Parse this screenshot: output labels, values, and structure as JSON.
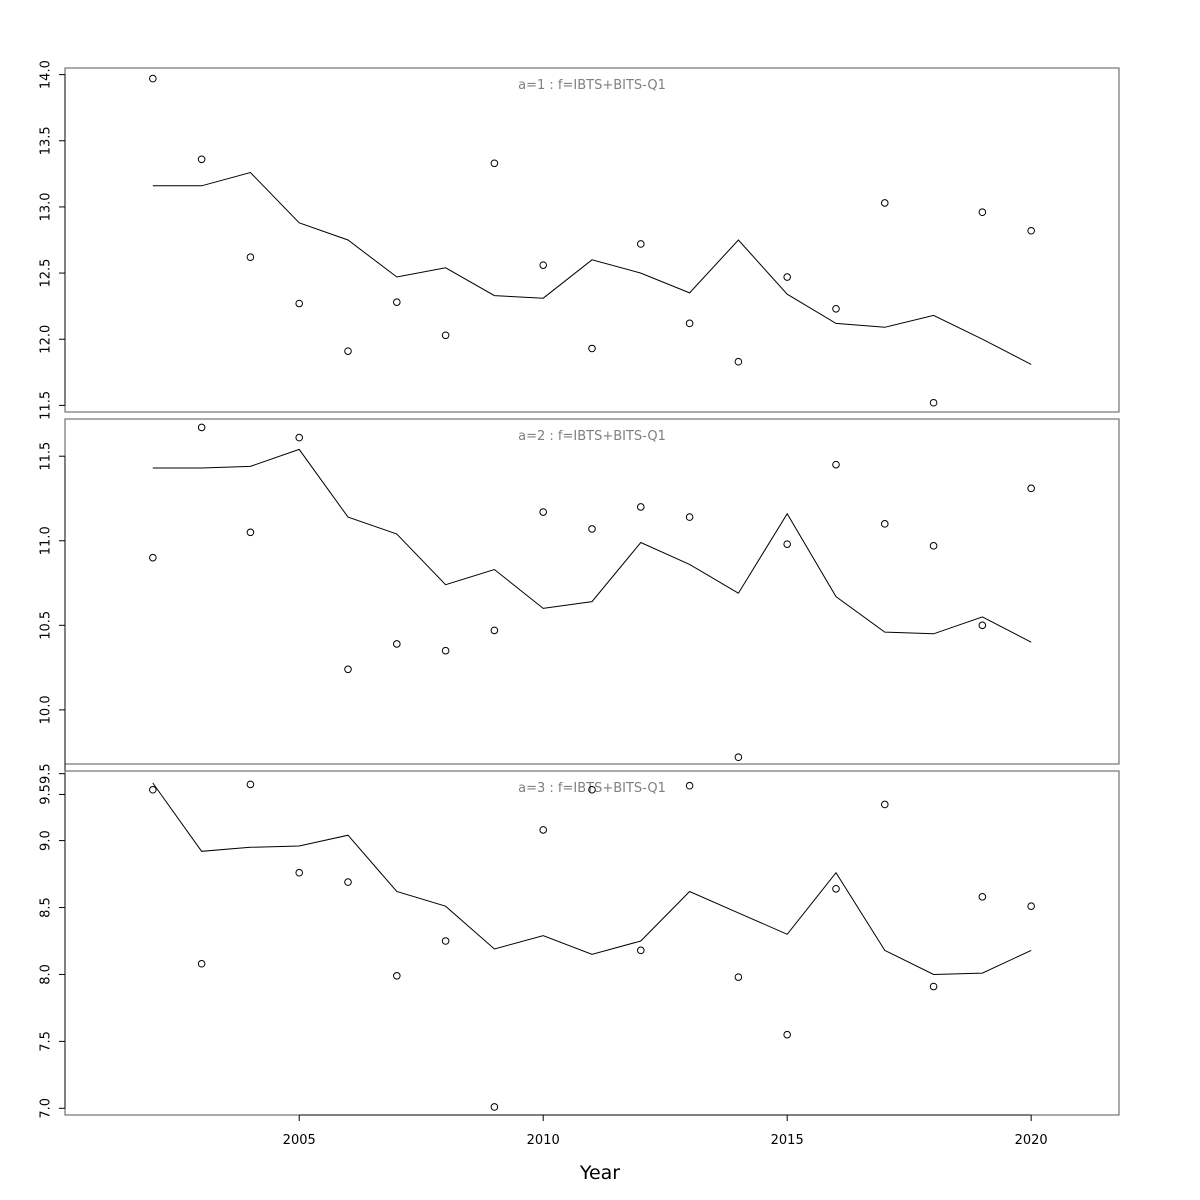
{
  "chart_data": {
    "type": "line",
    "xlabel": "Year",
    "xlim": [
      2000.2,
      2021.8
    ],
    "x_ticks": [
      2005,
      2010,
      2015,
      2020
    ],
    "x_tick_labels": [
      "2005",
      "2010",
      "2015",
      "2020"
    ],
    "colors": {
      "line": "#000000",
      "points": "#000000",
      "title": "#7f7f7f",
      "frame": "#555555"
    },
    "panels": [
      {
        "title": "a=1 : f=IBTS+BITS-Q1",
        "ylim": [
          11.45,
          14.05
        ],
        "y_ticks": [
          11.5,
          12.0,
          12.5,
          13.0,
          13.5,
          14.0
        ],
        "y_tick_labels": [
          "11.5",
          "12.0",
          "12.5",
          "13.0",
          "13.5",
          "14.0"
        ],
        "series": [
          {
            "type": "line",
            "x": [
              2002,
              2003,
              2004,
              2005,
              2006,
              2007,
              2008,
              2009,
              2010,
              2011,
              2012,
              2013,
              2014,
              2015,
              2016,
              2017,
              2018,
              2019,
              2020
            ],
            "y": [
              13.16,
              13.16,
              13.26,
              12.88,
              12.75,
              12.47,
              12.54,
              12.33,
              12.31,
              12.6,
              12.5,
              12.35,
              12.75,
              12.34,
              12.12,
              12.09,
              12.18,
              12.0,
              11.81
            ]
          },
          {
            "type": "scatter",
            "x": [
              2002,
              2003,
              2004,
              2005,
              2006,
              2007,
              2008,
              2009,
              2010,
              2011,
              2012,
              2013,
              2014,
              2015,
              2016,
              2017,
              2018,
              2019,
              2020
            ],
            "y": [
              13.97,
              13.36,
              12.62,
              12.27,
              11.91,
              12.28,
              12.03,
              13.33,
              12.56,
              11.93,
              12.72,
              12.12,
              11.83,
              12.47,
              12.23,
              13.03,
              11.52,
              12.96,
              12.82
            ]
          }
        ]
      },
      {
        "title": "a=2 : f=IBTS+BITS-Q1",
        "ylim": [
          9.68,
          11.72
        ],
        "y_ticks": [
          9.5,
          10.0,
          10.5,
          11.0,
          11.5
        ],
        "y_tick_labels": [
          "9.5",
          "10.0",
          "10.5",
          "11.0",
          "11.5"
        ],
        "series": [
          {
            "type": "line",
            "x": [
              2002,
              2003,
              2004,
              2005,
              2006,
              2007,
              2008,
              2009,
              2010,
              2011,
              2012,
              2013,
              2014,
              2015,
              2016,
              2017,
              2018,
              2019,
              2020
            ],
            "y": [
              11.43,
              11.43,
              11.44,
              11.54,
              11.14,
              11.04,
              10.74,
              10.83,
              10.6,
              10.64,
              10.99,
              10.86,
              10.69,
              11.16,
              10.67,
              10.46,
              10.45,
              10.55,
              10.4
            ]
          },
          {
            "type": "scatter",
            "x": [
              2002,
              2003,
              2004,
              2005,
              2006,
              2007,
              2008,
              2009,
              2010,
              2011,
              2012,
              2013,
              2014,
              2015,
              2016,
              2017,
              2018,
              2019,
              2020
            ],
            "y": [
              10.9,
              11.67,
              11.05,
              11.61,
              10.24,
              10.39,
              10.35,
              10.47,
              11.17,
              11.07,
              11.2,
              11.14,
              9.72,
              10.98,
              11.45,
              11.1,
              10.97,
              10.5,
              11.31
            ]
          }
        ]
      },
      {
        "title": "a=3 : f=IBTS+BITS-Q1",
        "ylim": [
          6.95,
          9.52
        ],
        "y_ticks": [
          7.0,
          7.5,
          8.0,
          8.5,
          9.0,
          9.5
        ],
        "y_tick_labels": [
          "7.0",
          "7.5",
          "8.0",
          "8.5",
          "9.0",
          "9.5"
        ],
        "series": [
          {
            "type": "line",
            "x": [
              2002,
              2003,
              2004,
              2005,
              2006,
              2007,
              2008,
              2009,
              2010,
              2011,
              2012,
              2013,
              2014,
              2015,
              2016,
              2017,
              2018,
              2019,
              2020
            ],
            "y": [
              9.43,
              8.92,
              8.95,
              8.96,
              9.04,
              8.62,
              8.51,
              8.19,
              8.29,
              8.15,
              8.25,
              8.62,
              8.46,
              8.3,
              8.76,
              8.18,
              8.0,
              8.01,
              8.18
            ]
          },
          {
            "type": "scatter",
            "x": [
              2002,
              2003,
              2004,
              2005,
              2006,
              2007,
              2008,
              2009,
              2010,
              2011,
              2012,
              2013,
              2014,
              2015,
              2016,
              2017,
              2018,
              2019,
              2020
            ],
            "y": [
              9.38,
              8.08,
              9.42,
              8.76,
              8.69,
              7.99,
              8.25,
              7.01,
              9.08,
              9.38,
              8.18,
              9.41,
              7.98,
              7.55,
              8.64,
              9.27,
              7.91,
              8.58,
              8.51
            ]
          }
        ]
      }
    ]
  }
}
